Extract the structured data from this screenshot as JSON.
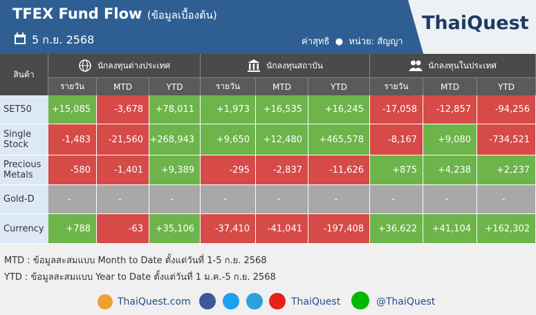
{
  "header": {
    "title": "TFEX Fund Flow",
    "subtitle": "(ข้อมูลเบื้องต้น)",
    "date": "5 ก.ย. 2568",
    "note": "ค่าสุทธิ",
    "unit": "หน่วย: สัญญา",
    "logo": "ThaiQuest"
  },
  "table": {
    "product_header": "สินค้า",
    "groups": [
      {
        "label": "นักลงทุนต่างประเทศ",
        "columns": [
          "รายวัน",
          "MTD",
          "YTD"
        ]
      },
      {
        "label": "นักลงทุนสถาบัน",
        "columns": [
          "รายวัน",
          "MTD",
          "YTD"
        ]
      },
      {
        "label": "นักลงทุนในประเทศ",
        "columns": [
          "รายวัน",
          "MTD",
          "YTD"
        ]
      }
    ],
    "rows": [
      {
        "label": "SET50",
        "values": [
          "+15,085",
          "-3,678",
          "+78,011",
          "+1,973",
          "+16,535",
          "+16,245",
          "-17,058",
          "-12,857",
          "-94,256"
        ]
      },
      {
        "label": "Single Stock",
        "values": [
          "-1,483",
          "-21,560",
          "+268,943",
          "+9,650",
          "+12,480",
          "+465,578",
          "-8,167",
          "+9,080",
          "-734,521"
        ]
      },
      {
        "label": "Precious Metals",
        "values": [
          "-580",
          "-1,401",
          "+9,389",
          "-295",
          "-2,837",
          "-11,626",
          "+875",
          "+4,238",
          "+2,237"
        ]
      },
      {
        "label": "Gold-D",
        "values": [
          "-",
          "-",
          "-",
          "-",
          "-",
          "-",
          "-",
          "-",
          "-"
        ]
      },
      {
        "label": "Currency",
        "values": [
          "+788",
          "-63",
          "+35,106",
          "-37,410",
          "-41,041",
          "-197,408",
          "+36,622",
          "+41,104",
          "+162,302"
        ]
      }
    ]
  },
  "footer": {
    "notes": [
      "MTD : ข้อมูลสะสมแบบ Month to Date ตั้งแต่วันที่ 1-5 ก.ย. 2568",
      "YTD : ข้อมูลสะสมแบบ Year to Date ตั้งแต่วันที่ 1 ม.ค.-5 ก.ย. 2568"
    ],
    "links": [
      "ThaiQuest.com",
      "ThaiQuest",
      "@ThaiQuest"
    ]
  }
}
